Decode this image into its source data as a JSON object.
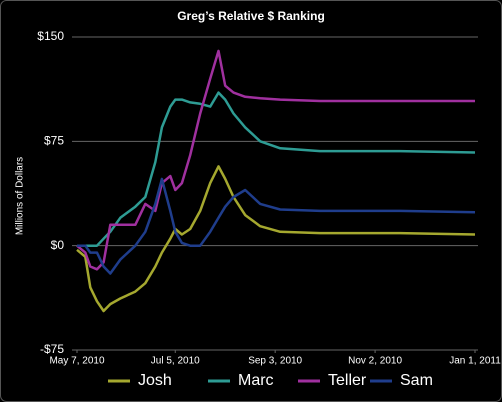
{
  "chart_data": {
    "type": "line",
    "title": "Greg’s Relative $ Ranking",
    "y_label": "Millions of Dollars",
    "x": [
      "2010-05-07",
      "2010-05-12",
      "2010-05-15",
      "2010-05-19",
      "2010-05-23",
      "2010-05-27",
      "2010-06-02",
      "2010-06-11",
      "2010-06-17",
      "2010-06-23",
      "2010-06-27",
      "2010-07-02",
      "2010-07-05",
      "2010-07-09",
      "2010-07-14",
      "2010-07-20",
      "2010-07-26",
      "2010-07-31",
      "2010-08-04",
      "2010-08-09",
      "2010-08-16",
      "2010-08-25",
      "2010-09-06",
      "2010-09-30",
      "2010-11-17",
      "2011-01-01"
    ],
    "series": [
      {
        "name": "Josh",
        "color": "#a5a82f",
        "values": [
          -3,
          -8,
          -30,
          -40,
          -47,
          -42,
          -38,
          -33,
          -27,
          -15,
          -5,
          5,
          12,
          8,
          12,
          25,
          45,
          57,
          48,
          35,
          22,
          14,
          10,
          9,
          9,
          8
        ]
      },
      {
        "name": "Marc",
        "color": "#2e9c94",
        "values": [
          0,
          0,
          0,
          0,
          5,
          10,
          20,
          28,
          35,
          60,
          85,
          100,
          105,
          105,
          103,
          102,
          100,
          110,
          105,
          95,
          85,
          75,
          70,
          68,
          68,
          67
        ]
      },
      {
        "name": "Teller",
        "color": "#a0309f",
        "values": [
          0,
          -5,
          -15,
          -17,
          -12,
          15,
          15,
          15,
          30,
          25,
          45,
          50,
          40,
          45,
          65,
          95,
          120,
          140,
          115,
          110,
          107,
          106,
          105,
          104,
          104,
          104
        ]
      },
      {
        "name": "Sam",
        "color": "#1f3d8c",
        "values": [
          0,
          0,
          -5,
          -5,
          -15,
          -20,
          -10,
          0,
          10,
          30,
          48,
          25,
          10,
          2,
          0,
          0,
          10,
          20,
          28,
          35,
          40,
          30,
          26,
          25,
          25,
          24
        ]
      }
    ],
    "xlim": [
      "2010-05-07",
      "2011-01-01"
    ],
    "xticks": [
      {
        "value": "2010-05-07",
        "label": "May 7, 2010"
      },
      {
        "value": "2010-07-05",
        "label": "Jul 5, 2010"
      },
      {
        "value": "2010-09-03",
        "label": "Sep 3, 2010"
      },
      {
        "value": "2010-11-02",
        "label": "Nov 2, 2010"
      },
      {
        "value": "2011-01-01",
        "label": "Jan 1, 2011"
      }
    ],
    "ylim": [
      -75,
      150
    ],
    "yticks": [
      {
        "value": -75,
        "label": "-$75"
      },
      {
        "value": 0,
        "label": "$0"
      },
      {
        "value": 75,
        "label": "$75"
      },
      {
        "value": 150,
        "label": "$150"
      }
    ],
    "grid": true
  }
}
